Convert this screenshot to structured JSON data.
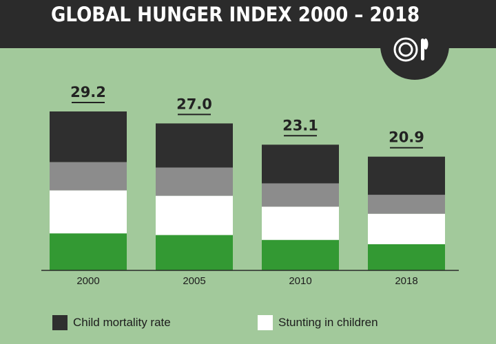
{
  "header": {
    "title": "GLOBAL HUNGER INDEX 2000 – 2018",
    "icon": "plate-fork-icon"
  },
  "colors": {
    "background": "#a2c99b",
    "header": "#2b2b2b",
    "child_mortality": "#2f2f2f",
    "gray_segment": "#8c8c8c",
    "stunting": "#ffffff",
    "green_segment": "#339933"
  },
  "chart_data": {
    "type": "bar",
    "stacked": true,
    "title": "GLOBAL HUNGER INDEX 2000 – 2018",
    "categories": [
      "2000",
      "2005",
      "2010",
      "2018"
    ],
    "totals": [
      29.2,
      27.0,
      23.1,
      20.9
    ],
    "series": [
      {
        "name": "",
        "color": "#339933",
        "values": [
          6.8,
          6.5,
          5.6,
          4.8
        ]
      },
      {
        "name": "Stunting in children",
        "color": "#ffffff",
        "values": [
          7.9,
          7.2,
          6.1,
          5.6
        ]
      },
      {
        "name": "",
        "color": "#8c8c8c",
        "values": [
          5.2,
          5.2,
          4.3,
          3.5
        ]
      },
      {
        "name": "Child mortality rate",
        "color": "#2f2f2f",
        "values": [
          9.3,
          8.1,
          7.1,
          7.0
        ]
      }
    ],
    "xlabel": "",
    "ylabel": "",
    "ylim": [
      0,
      29.2
    ],
    "grid": false
  },
  "legend": [
    {
      "label": "Child mortality rate",
      "color": "#2f2f2f"
    },
    {
      "label": "Stunting in children",
      "color": "#ffffff"
    }
  ]
}
